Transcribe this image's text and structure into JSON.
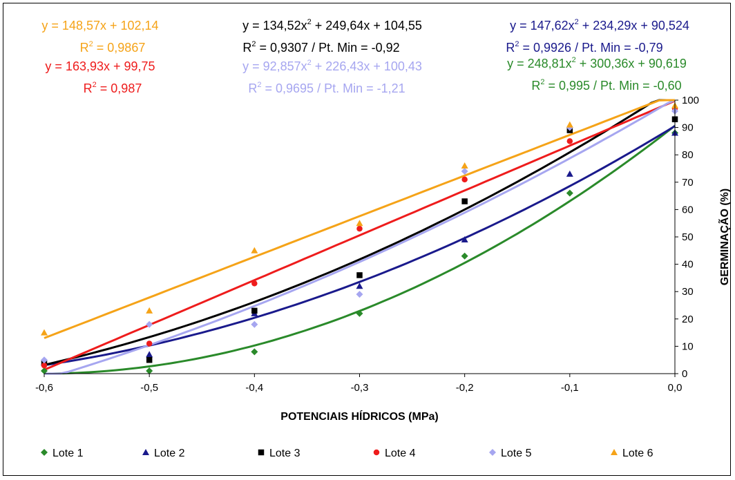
{
  "chart_data": {
    "type": "scatter",
    "title": "",
    "xlabel": "POTENCIAIS HÍDRICOS (MPa)",
    "ylabel": "GERMINAÇÃO (%)",
    "xlim": [
      -0.6,
      0.0
    ],
    "ylim": [
      0,
      100
    ],
    "x_ticks": [
      {
        "value": -0.6,
        "label": "-0,6"
      },
      {
        "value": -0.5,
        "label": "-0,5"
      },
      {
        "value": -0.4,
        "label": "-0,4"
      },
      {
        "value": -0.3,
        "label": "-0,3"
      },
      {
        "value": -0.2,
        "label": "-0,2"
      },
      {
        "value": -0.1,
        "label": "-0,1"
      },
      {
        "value": 0.0,
        "label": "0,0"
      }
    ],
    "y_ticks": [
      {
        "value": 0,
        "label": "0"
      },
      {
        "value": 10,
        "label": "10"
      },
      {
        "value": 20,
        "label": "20"
      },
      {
        "value": 30,
        "label": "30"
      },
      {
        "value": 40,
        "label": "40"
      },
      {
        "value": 50,
        "label": "50"
      },
      {
        "value": 60,
        "label": "60"
      },
      {
        "value": 70,
        "label": "70"
      },
      {
        "value": 80,
        "label": "80"
      },
      {
        "value": 90,
        "label": "90"
      },
      {
        "value": 100,
        "label": "100"
      }
    ],
    "x": [
      -0.6,
      -0.5,
      -0.4,
      -0.3,
      -0.2,
      -0.1,
      0.0
    ],
    "legend_position": "bottom",
    "grid": false,
    "series": [
      {
        "name": "Lote 1",
        "color": "#2a8a2a",
        "marker": "diamond",
        "values": [
          1,
          1,
          8,
          22,
          43,
          66,
          88
        ],
        "fit": {
          "type": "quadratic",
          "a": 248.81,
          "b": 300.36,
          "c": 90.619,
          "xmin": -0.6
        }
      },
      {
        "name": "Lote 2",
        "color": "#1a1a8c",
        "marker": "triangle",
        "values": [
          4,
          7,
          22,
          32,
          49,
          73,
          88
        ],
        "fit": {
          "type": "quadratic",
          "a": 147.62,
          "b": 234.29,
          "c": 90.524
        }
      },
      {
        "name": "Lote 3",
        "color": "#000000",
        "marker": "square",
        "values": [
          4,
          5,
          23,
          36,
          63,
          89,
          93
        ],
        "fit": {
          "type": "quadratic",
          "a": 134.52,
          "b": 249.64,
          "c": 104.55
        }
      },
      {
        "name": "Lote 4",
        "color": "#ee1c1c",
        "marker": "circle",
        "values": [
          3,
          11,
          33,
          53,
          71,
          85,
          97
        ],
        "fit": {
          "type": "linear",
          "a": 0,
          "b": 163.93,
          "c": 99.75
        }
      },
      {
        "name": "Lote 5",
        "color": "#a6a6f0",
        "marker": "diamond",
        "values": [
          5,
          18,
          18,
          29,
          74,
          90,
          96
        ],
        "fit": {
          "type": "quadratic",
          "a": 92.857,
          "b": 226.43,
          "c": 100.43
        }
      },
      {
        "name": "Lote 6",
        "color": "#f5a318",
        "marker": "triangle",
        "values": [
          15,
          23,
          45,
          55,
          76,
          91,
          98
        ],
        "fit": {
          "type": "linear",
          "a": 0,
          "b": 148.57,
          "c": 102.14
        }
      }
    ],
    "annotations": [
      {
        "id": "eq6",
        "color": "#f5a318",
        "line1": "y = 148,57x + 102,14",
        "r2": "= 0,9867",
        "quad": false
      },
      {
        "id": "eq4",
        "color": "#ee1c1c",
        "line1": "y = 163,93x + 99,75",
        "r2": "= 0,987",
        "quad": false
      },
      {
        "id": "eq3",
        "color": "#000000",
        "q_a": "y = 134,52x",
        "q_b": " + 249,64x + 104,55",
        "r2": "= 0,9307 / Pt. Min = -0,92",
        "quad": true
      },
      {
        "id": "eq5",
        "color": "#a6a6f0",
        "q_a": "y = 92,857x",
        "q_b": " + 226,43x + 100,43",
        "r2": "= 0,9695 / Pt. Min = -1,21",
        "quad": true
      },
      {
        "id": "eq2",
        "color": "#1a1a8c",
        "q_a": "y = 147,62x",
        "q_b": " + 234,29x + 90,524",
        "r2": "= 0,9926 / Pt. Min = -0,79",
        "quad": true
      },
      {
        "id": "eq1",
        "color": "#2a8a2a",
        "q_a": "y = 248,81x",
        "q_b": " + 300,36x + 90,619",
        "r2": "= 0,995 / Pt. Min = -0,60",
        "quad": true
      }
    ]
  }
}
